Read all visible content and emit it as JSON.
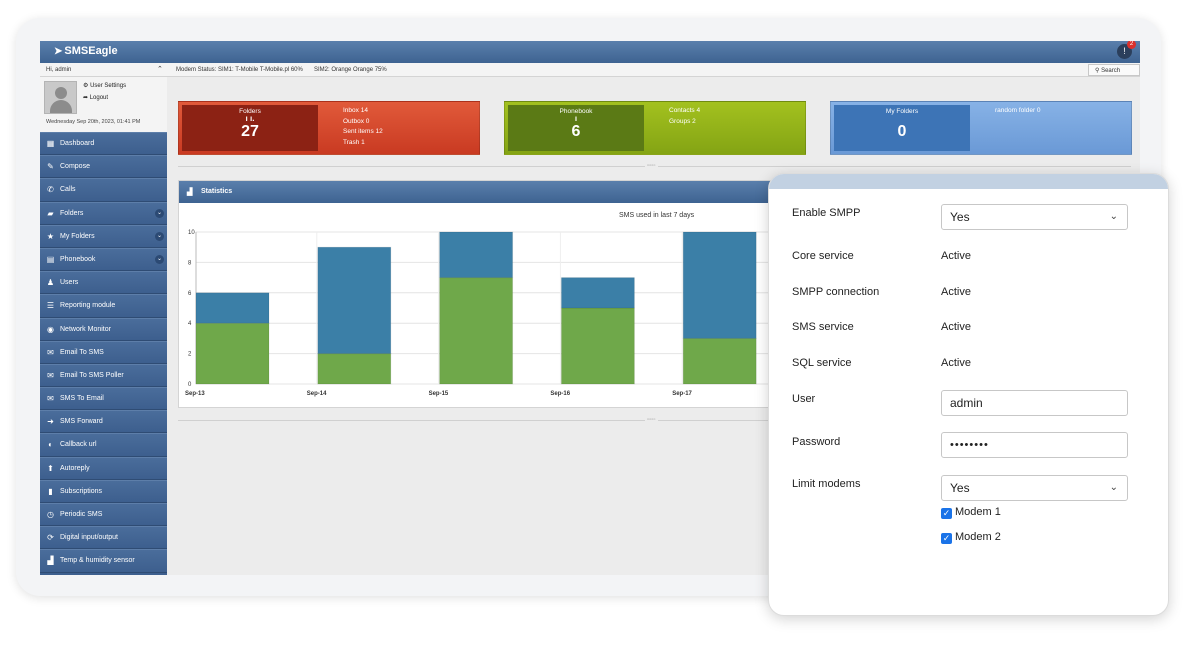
{
  "app": {
    "brand": "SMSEagle",
    "notifications": "2"
  },
  "status": {
    "greeting": "Hi, admin",
    "modem1": "Modem Status: SIM1: T-Mobile T-Mobile.pl 60%",
    "modem2": "SIM2: Orange Orange 75%",
    "search_label": "Search"
  },
  "user": {
    "settings_label": "User Settings",
    "logout_label": "Logout",
    "datetime": "Wednesday Sep 20th, 2023, 01:41 PM"
  },
  "sidebar": {
    "items": [
      {
        "label": "Dashboard",
        "icon": "dashboard-icon",
        "glyph": "▦",
        "caret": false
      },
      {
        "label": "Compose",
        "icon": "pencil-icon",
        "glyph": "✎",
        "caret": false
      },
      {
        "label": "Calls",
        "icon": "phone-icon",
        "glyph": "✆",
        "caret": false
      },
      {
        "label": "Folders",
        "icon": "folder-icon",
        "glyph": "▰",
        "caret": true
      },
      {
        "label": "My Folders",
        "icon": "star-icon",
        "glyph": "★",
        "caret": true
      },
      {
        "label": "Phonebook",
        "icon": "calendar-icon",
        "glyph": "▤",
        "caret": true
      },
      {
        "label": "Users",
        "icon": "users-icon",
        "glyph": "♟",
        "caret": false
      },
      {
        "label": "Reporting module",
        "icon": "list-icon",
        "glyph": "☰",
        "caret": false
      },
      {
        "label": "Network Monitor",
        "icon": "gauge-icon",
        "glyph": "◉",
        "caret": false
      },
      {
        "label": "Email To SMS",
        "icon": "envelope-icon",
        "glyph": "✉",
        "caret": false
      },
      {
        "label": "Email To SMS Poller",
        "icon": "envelope-icon",
        "glyph": "✉",
        "caret": false
      },
      {
        "label": "SMS To Email",
        "icon": "envelope-icon",
        "glyph": "✉",
        "caret": false
      },
      {
        "label": "SMS Forward",
        "icon": "arrow-right-icon",
        "glyph": "➜",
        "caret": false
      },
      {
        "label": "Callback url",
        "icon": "link-icon",
        "glyph": "◐",
        "caret": false
      },
      {
        "label": "Autoreply",
        "icon": "arrow-up-icon",
        "glyph": "⬆",
        "caret": false
      },
      {
        "label": "Subscriptions",
        "icon": "bookmark-icon",
        "glyph": "▮",
        "caret": false
      },
      {
        "label": "Periodic SMS",
        "icon": "clock-icon",
        "glyph": "◷",
        "caret": false
      },
      {
        "label": "Digital input/output",
        "icon": "refresh-icon",
        "glyph": "⟳",
        "caret": false
      },
      {
        "label": "Temp & humidity sensor",
        "icon": "bar-chart-icon",
        "glyph": "▟",
        "caret": false
      }
    ]
  },
  "tiles": {
    "folders": {
      "title": "Folders",
      "value": "27",
      "glyph": "ı ı.",
      "lines": [
        "Inbox 14",
        "Outbox 0",
        "Sent items 12",
        "Trash 1"
      ]
    },
    "phonebook": {
      "title": "Phonebook",
      "value": "6",
      "glyph": "ı",
      "lines": [
        "Contacts 4",
        "Groups 2"
      ]
    },
    "my_folders": {
      "title": "My Folders",
      "value": "0",
      "lines": [
        "random folder 0"
      ]
    }
  },
  "statistics": {
    "title": "Statistics"
  },
  "chart_data": {
    "type": "bar",
    "title": "SMS used in last 7 days",
    "categories": [
      "Sep-13",
      "Sep-14",
      "Sep-15",
      "Sep-16",
      "Sep-17"
    ],
    "series": [
      {
        "values": [
          4,
          2,
          7,
          5,
          3
        ],
        "color": "#6fa84a"
      },
      {
        "values": [
          2,
          7,
          3,
          2,
          7
        ],
        "color": "#3b7fa7"
      }
    ],
    "ylim": [
      0,
      10
    ],
    "yticks": [
      0,
      2,
      4,
      6,
      8,
      10
    ],
    "stacked": true,
    "grid": true
  },
  "smpp": {
    "enable_label": "Enable SMPP",
    "enable_value": "Yes",
    "core_label": "Core service",
    "core_value": "Active",
    "conn_label": "SMPP connection",
    "conn_value": "Active",
    "sms_label": "SMS service",
    "sms_value": "Active",
    "sql_label": "SQL service",
    "sql_value": "Active",
    "user_label": "User",
    "user_value": "admin",
    "password_label": "Password",
    "password_value": "••••••••",
    "limit_label": "Limit modems",
    "limit_value": "Yes",
    "modem1_label": "Modem 1",
    "modem2_label": "Modem 2"
  }
}
